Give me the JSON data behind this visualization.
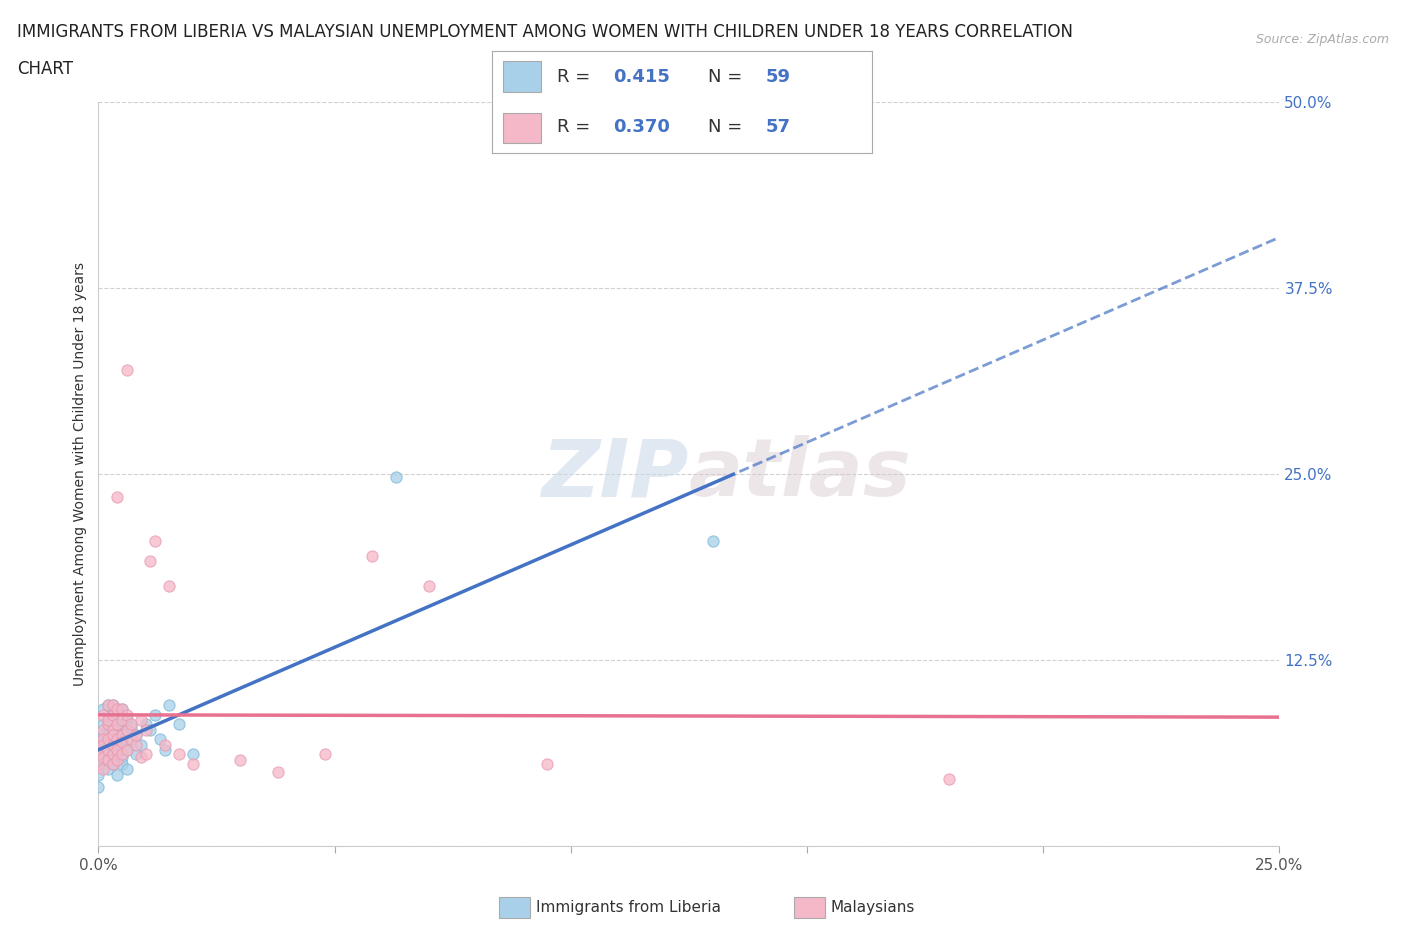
{
  "title_line1": "IMMIGRANTS FROM LIBERIA VS MALAYSIAN UNEMPLOYMENT AMONG WOMEN WITH CHILDREN UNDER 18 YEARS CORRELATION",
  "title_line2": "CHART",
  "source": "Source: ZipAtlas.com",
  "ylabel": "Unemployment Among Women with Children Under 18 years",
  "xlim": [
    0.0,
    0.25
  ],
  "ylim": [
    0.0,
    0.5
  ],
  "yticks": [
    0.0,
    0.125,
    0.25,
    0.375,
    0.5
  ],
  "ytick_labels": [
    "",
    "12.5%",
    "25.0%",
    "37.5%",
    "50.0%"
  ],
  "xticks": [
    0.0,
    0.05,
    0.1,
    0.15,
    0.2,
    0.25
  ],
  "xtick_labels": [
    "0.0%",
    "",
    "",
    "",
    "",
    "25.0%"
  ],
  "R_blue": 0.415,
  "N_blue": 59,
  "R_pink": 0.37,
  "N_pink": 57,
  "blue_color": "#a8d0e8",
  "pink_color": "#f4b8c8",
  "blue_line_color": "#4472c4",
  "pink_line_color": "#e87090",
  "blue_scatter": [
    [
      0.0,
      0.055
    ],
    [
      0.0,
      0.065
    ],
    [
      0.0,
      0.048
    ],
    [
      0.0,
      0.04
    ],
    [
      0.001,
      0.072
    ],
    [
      0.001,
      0.06
    ],
    [
      0.001,
      0.055
    ],
    [
      0.001,
      0.068
    ],
    [
      0.001,
      0.058
    ],
    [
      0.001,
      0.082
    ],
    [
      0.001,
      0.075
    ],
    [
      0.001,
      0.092
    ],
    [
      0.002,
      0.062
    ],
    [
      0.002,
      0.075
    ],
    [
      0.002,
      0.085
    ],
    [
      0.002,
      0.058
    ],
    [
      0.002,
      0.095
    ],
    [
      0.002,
      0.07
    ],
    [
      0.002,
      0.052
    ],
    [
      0.002,
      0.065
    ],
    [
      0.003,
      0.06
    ],
    [
      0.003,
      0.078
    ],
    [
      0.003,
      0.068
    ],
    [
      0.003,
      0.055
    ],
    [
      0.003,
      0.088
    ],
    [
      0.003,
      0.072
    ],
    [
      0.003,
      0.062
    ],
    [
      0.003,
      0.095
    ],
    [
      0.004,
      0.065
    ],
    [
      0.004,
      0.075
    ],
    [
      0.004,
      0.082
    ],
    [
      0.004,
      0.058
    ],
    [
      0.004,
      0.092
    ],
    [
      0.004,
      0.048
    ],
    [
      0.004,
      0.07
    ],
    [
      0.005,
      0.072
    ],
    [
      0.005,
      0.082
    ],
    [
      0.005,
      0.06
    ],
    [
      0.005,
      0.092
    ],
    [
      0.005,
      0.055
    ],
    [
      0.006,
      0.078
    ],
    [
      0.006,
      0.065
    ],
    [
      0.006,
      0.085
    ],
    [
      0.006,
      0.052
    ],
    [
      0.007,
      0.07
    ],
    [
      0.007,
      0.08
    ],
    [
      0.008,
      0.075
    ],
    [
      0.008,
      0.062
    ],
    [
      0.009,
      0.068
    ],
    [
      0.01,
      0.082
    ],
    [
      0.011,
      0.078
    ],
    [
      0.012,
      0.088
    ],
    [
      0.013,
      0.072
    ],
    [
      0.014,
      0.065
    ],
    [
      0.015,
      0.095
    ],
    [
      0.017,
      0.082
    ],
    [
      0.02,
      0.062
    ],
    [
      0.063,
      0.248
    ],
    [
      0.13,
      0.205
    ]
  ],
  "pink_scatter": [
    [
      0.0,
      0.062
    ],
    [
      0.0,
      0.055
    ],
    [
      0.001,
      0.078
    ],
    [
      0.001,
      0.06
    ],
    [
      0.001,
      0.072
    ],
    [
      0.001,
      0.088
    ],
    [
      0.001,
      0.068
    ],
    [
      0.001,
      0.052
    ],
    [
      0.002,
      0.082
    ],
    [
      0.002,
      0.065
    ],
    [
      0.002,
      0.072
    ],
    [
      0.002,
      0.095
    ],
    [
      0.002,
      0.058
    ],
    [
      0.002,
      0.085
    ],
    [
      0.003,
      0.068
    ],
    [
      0.003,
      0.078
    ],
    [
      0.003,
      0.062
    ],
    [
      0.003,
      0.088
    ],
    [
      0.003,
      0.055
    ],
    [
      0.003,
      0.075
    ],
    [
      0.003,
      0.095
    ],
    [
      0.004,
      0.082
    ],
    [
      0.004,
      0.065
    ],
    [
      0.004,
      0.072
    ],
    [
      0.004,
      0.092
    ],
    [
      0.004,
      0.058
    ],
    [
      0.004,
      0.235
    ],
    [
      0.005,
      0.075
    ],
    [
      0.005,
      0.07
    ],
    [
      0.005,
      0.085
    ],
    [
      0.005,
      0.062
    ],
    [
      0.005,
      0.092
    ],
    [
      0.006,
      0.078
    ],
    [
      0.006,
      0.065
    ],
    [
      0.006,
      0.088
    ],
    [
      0.006,
      0.32
    ],
    [
      0.007,
      0.072
    ],
    [
      0.007,
      0.082
    ],
    [
      0.008,
      0.068
    ],
    [
      0.008,
      0.075
    ],
    [
      0.009,
      0.06
    ],
    [
      0.009,
      0.085
    ],
    [
      0.01,
      0.078
    ],
    [
      0.01,
      0.062
    ],
    [
      0.011,
      0.192
    ],
    [
      0.012,
      0.205
    ],
    [
      0.014,
      0.068
    ],
    [
      0.015,
      0.175
    ],
    [
      0.017,
      0.062
    ],
    [
      0.02,
      0.055
    ],
    [
      0.03,
      0.058
    ],
    [
      0.038,
      0.05
    ],
    [
      0.048,
      0.062
    ],
    [
      0.058,
      0.195
    ],
    [
      0.07,
      0.175
    ],
    [
      0.095,
      0.055
    ],
    [
      0.18,
      0.045
    ]
  ],
  "background_color": "#ffffff",
  "grid_color": "#cccccc",
  "title_fontsize": 12,
  "axis_label_fontsize": 10,
  "tick_fontsize": 11,
  "legend_fontsize": 13
}
